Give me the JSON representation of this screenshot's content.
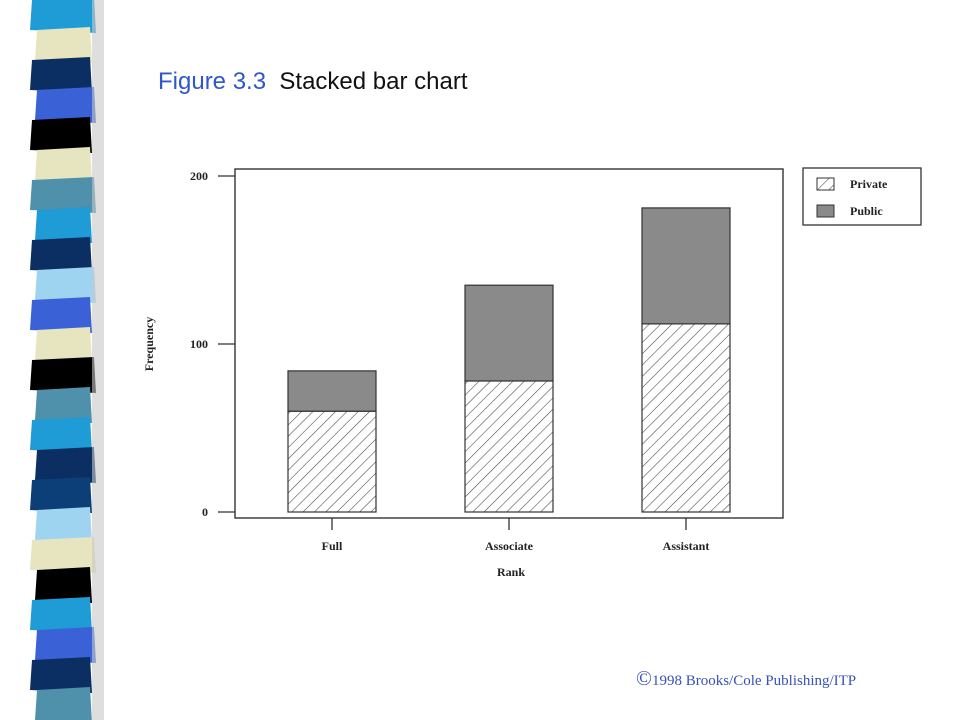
{
  "slide": {
    "figure_number": "Figure 3.3",
    "figure_caption": "Stacked bar chart",
    "copyright_symbol": "©",
    "copyright_text": "1998 Brooks/Cole Publishing/ITP"
  },
  "colors": {
    "title_blue": "#2f57c9",
    "copyright_blue": "#3652b8",
    "public_fill": "#8a8a8a",
    "hatch": "#444444",
    "strip_palette": [
      "#1f9bd6",
      "#0c2f63",
      "#3a62d6",
      "#e6e5c0",
      "#000000",
      "#4f90aa",
      "#9fd4f0",
      "#0c3e78"
    ]
  },
  "chart_data": {
    "type": "bar",
    "stacked": true,
    "categories": [
      "Full",
      "Associate",
      "Assistant"
    ],
    "series": [
      {
        "name": "Private",
        "values": [
          60,
          78,
          112
        ],
        "pattern": "hatched"
      },
      {
        "name": "Public",
        "values": [
          24,
          57,
          69
        ],
        "pattern": "solid-gray"
      }
    ],
    "xlabel": "Rank",
    "ylabel": "Frequency",
    "ylim": [
      0,
      200
    ],
    "yticks": [
      0,
      100,
      200
    ],
    "grid": false,
    "legend_position": "top-right"
  }
}
